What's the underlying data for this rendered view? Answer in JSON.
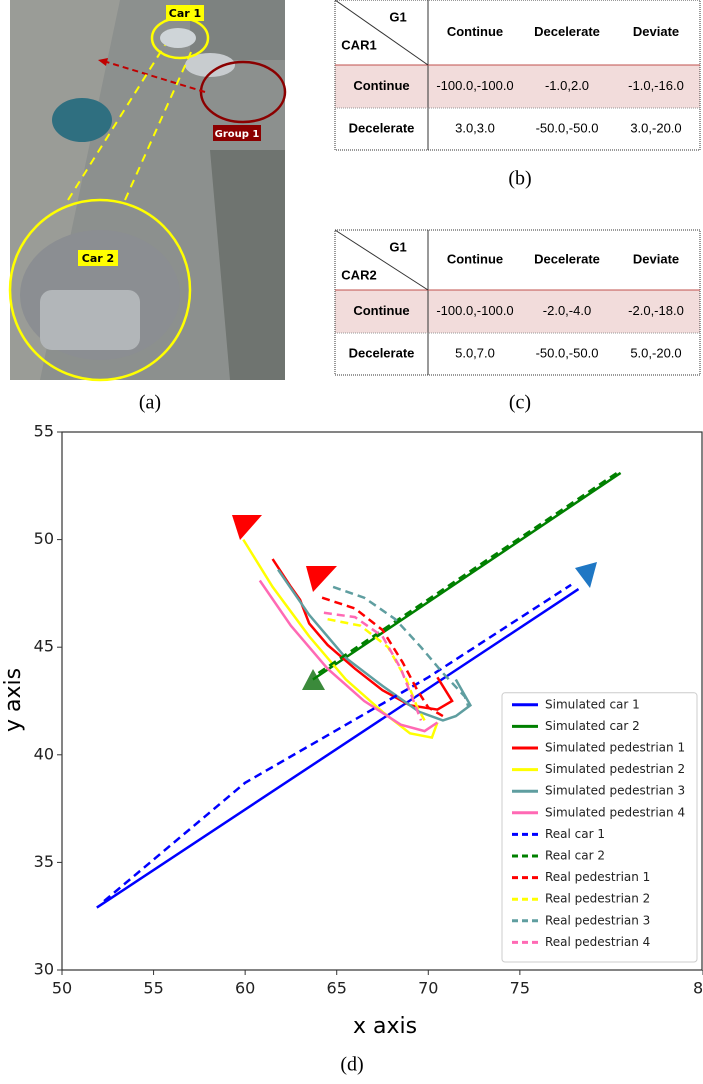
{
  "photo": {
    "labels": [
      "Car 1",
      "Group 1",
      "Car 2"
    ],
    "caption": "(a)"
  },
  "tables": [
    {
      "corner_top": "G1",
      "corner_left": "CAR1",
      "columns": [
        "Continue",
        "Decelerate",
        "Deviate"
      ],
      "rows": [
        {
          "label": "Continue",
          "cells": [
            "-100.0,-100.0",
            "-1.0,2.0",
            "-1.0,-16.0"
          ]
        },
        {
          "label": "Decelerate",
          "cells": [
            "3.0,3.0",
            "-50.0,-50.0",
            "3.0,-20.0"
          ]
        }
      ],
      "caption": "(b)"
    },
    {
      "corner_top": "G1",
      "corner_left": "CAR2",
      "columns": [
        "Continue",
        "Decelerate",
        "Deviate"
      ],
      "rows": [
        {
          "label": "Continue",
          "cells": [
            "-100.0,-100.0",
            "-2.0,-4.0",
            "-2.0,-18.0"
          ]
        },
        {
          "label": "Decelerate",
          "cells": [
            "5.0,7.0",
            "-50.0,-50.0",
            "5.0,-20.0"
          ]
        }
      ],
      "caption": "(c)"
    }
  ],
  "chart_data": {
    "type": "line",
    "caption": "(d)",
    "x_label": "x axis",
    "y_label": "y axis",
    "xlim": [
      50,
      85
    ],
    "xticks": [
      50,
      55,
      60,
      65,
      70,
      75,
      {
        "value": 85,
        "label": "8"
      }
    ],
    "ylim": [
      30,
      55
    ],
    "yticks": [
      30,
      35,
      40,
      45,
      50,
      55
    ],
    "legend": "lower right",
    "series": [
      {
        "name": "Simulated car 1",
        "color": "#0000ff",
        "style": "solid",
        "x": [
          51.9,
          78.2
        ],
        "values": [
          32.9,
          47.7
        ]
      },
      {
        "name": "Simulated car 2",
        "color": "#008000",
        "style": "solid",
        "x": [
          63.7,
          80.5
        ],
        "values": [
          43.5,
          53.1
        ]
      },
      {
        "name": "Simulated pedestrian 1",
        "color": "#ff0000",
        "style": "solid",
        "x": [
          61.5,
          62.5,
          63.0,
          63.5,
          64.5,
          66,
          67.5,
          69,
          70.5,
          71.3,
          70.5
        ],
        "values": [
          49.1,
          47.8,
          47.2,
          46.1,
          45.1,
          44,
          43,
          42.3,
          42.1,
          42.5,
          43.6
        ]
      },
      {
        "name": "Simulated pedestrian 2",
        "color": "#ffff00",
        "style": "solid",
        "x": [
          59.9,
          61.5,
          63.5,
          65.5,
          67.5,
          69,
          70.2,
          70.5
        ],
        "values": [
          50,
          47.8,
          45.5,
          43.5,
          42,
          41,
          40.8,
          41.5
        ]
      },
      {
        "name": "Simulated pedestrian 3",
        "color": "#5f9ea0",
        "style": "solid",
        "x": [
          61.8,
          63.5,
          65.5,
          67.5,
          69.5,
          70.8,
          71.5,
          72.3,
          71.5
        ],
        "values": [
          48.6,
          46.5,
          44.5,
          43.2,
          42,
          41.6,
          41.8,
          42.3,
          43.5
        ]
      },
      {
        "name": "Simulated pedestrian 4",
        "color": "#ff69b4",
        "style": "solid",
        "x": [
          60.8,
          62.5,
          64.5,
          66.5,
          68.5,
          69.8,
          70.5
        ],
        "values": [
          48.1,
          46,
          44,
          42.5,
          41.4,
          41.1,
          41.5
        ]
      },
      {
        "name": "Real car 1",
        "color": "#0000ff",
        "style": "dashed",
        "x": [
          52.3,
          60,
          70,
          77.8
        ],
        "values": [
          33.2,
          38.7,
          43.6,
          47.9
        ]
      },
      {
        "name": "Real car 2",
        "color": "#008000",
        "style": "dashed",
        "x": [
          64.0,
          80.3
        ],
        "values": [
          43.8,
          53.1
        ]
      },
      {
        "name": "Real pedestrian 1",
        "color": "#ff0000",
        "style": "dashed",
        "x": [
          64.2,
          66,
          67.5,
          68.6,
          69.4,
          70,
          70.8
        ],
        "values": [
          47.3,
          46.8,
          45.8,
          44.3,
          43,
          42.2,
          41.8
        ]
      },
      {
        "name": "Real pedestrian 2",
        "color": "#ffff00",
        "style": "dashed",
        "x": [
          64.5,
          66.3,
          67.8,
          68.8,
          69.4,
          69.8
        ],
        "values": [
          46.3,
          46,
          45,
          43.5,
          42.2,
          41.6
        ]
      },
      {
        "name": "Real pedestrian 3",
        "color": "#5f9ea0",
        "style": "dashed",
        "x": [
          64.8,
          66.5,
          68.2,
          69.6,
          70.8,
          72,
          72.2
        ],
        "values": [
          47.8,
          47.3,
          46.3,
          45,
          43.8,
          42.7,
          42.2
        ]
      },
      {
        "name": "Real pedestrian 4",
        "color": "#ff69b4",
        "style": "dashed",
        "x": [
          64.3,
          66,
          67.5,
          68.5,
          69.2,
          69.6
        ],
        "values": [
          46.6,
          46.4,
          45.5,
          44,
          42.5,
          41.6
        ]
      }
    ]
  }
}
